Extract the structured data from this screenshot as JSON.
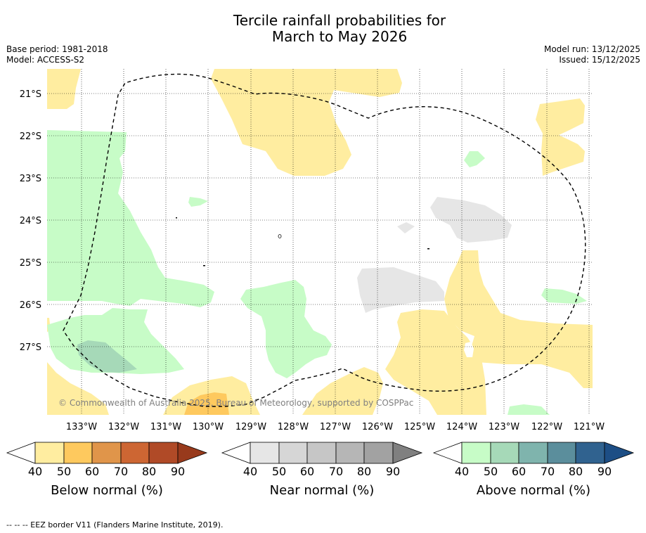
{
  "title_line1": "Tercile rainfall probabilities for",
  "title_line2": "March to May 2026",
  "base_period": "Base period: 1981-2018",
  "model": "Model: ACCESS-S2",
  "model_run": "Model run: 13/12/2025",
  "issued": "Issued: 15/12/2025",
  "copyright": "© Commonwealth of Australia 2025, Bureau of Meteorology, supported by COSPPac",
  "footnote": "--  --  -- EEZ border V11 (Flanders Marine Institute, 2019).",
  "map": {
    "lat_labels": [
      "21°S",
      "22°S",
      "23°S",
      "24°S",
      "25°S",
      "26°S",
      "27°S"
    ],
    "lon_labels": [
      "133°W",
      "132°W",
      "131°W",
      "130°W",
      "129°W",
      "128°W",
      "127°W",
      "126°W",
      "125°W",
      "124°W",
      "123°W",
      "122°W",
      "121°W"
    ]
  },
  "colorbars": [
    {
      "title": "Below normal (%)",
      "ticks": [
        "40",
        "50",
        "60",
        "70",
        "80",
        "90"
      ],
      "colors": [
        "#ffffff",
        "#ffeda0",
        "#fec95e",
        "#e0954a",
        "#cd6633",
        "#b04a27",
        "#983a1c"
      ]
    },
    {
      "title": "Near normal (%)",
      "ticks": [
        "40",
        "50",
        "60",
        "70",
        "80",
        "90"
      ],
      "colors": [
        "#ffffff",
        "#e6e6e6",
        "#d6d6d6",
        "#c6c6c6",
        "#b6b6b6",
        "#a2a2a2",
        "#808080"
      ]
    },
    {
      "title": "Above normal (%)",
      "ticks": [
        "40",
        "50",
        "60",
        "70",
        "80",
        "90"
      ],
      "colors": [
        "#ffffff",
        "#c7fcc7",
        "#a6d9b8",
        "#7fb4ad",
        "#5b8e9c",
        "#30628f",
        "#1d4e85"
      ]
    }
  ]
}
